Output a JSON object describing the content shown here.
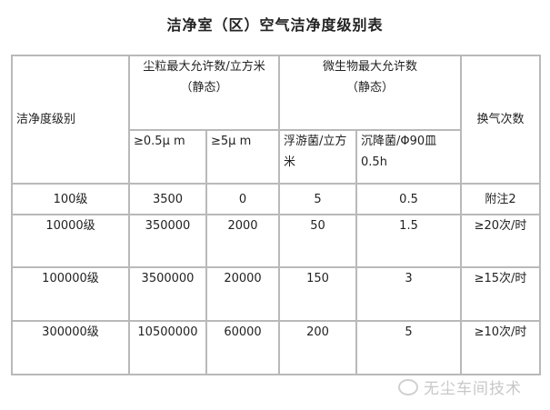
{
  "title": "洁净室（区）空气洁净度级别表",
  "headers": {
    "grade": "洁净度级别",
    "particle_group": [
      "尘粒最大允许数/立方米",
      "（静态）"
    ],
    "micro_group": [
      "微生物最大允许数",
      "（静态）"
    ],
    "air_changes": "换气次数",
    "sub": [
      "≥0.5μ m",
      "≥5μ m",
      "浮游菌/立方米",
      "沉降菌/Φ90皿 0.5h"
    ]
  },
  "rows": [
    [
      "100级",
      "3500",
      "0",
      "5",
      "0.5",
      "附注2"
    ],
    [
      "10000级",
      "350000",
      "2000",
      "50",
      "1.5",
      "≥20次/时"
    ],
    [
      "100000级",
      "3500000",
      "20000",
      "150",
      "3",
      "≥15次/时"
    ],
    [
      "300000级",
      "10500000",
      "60000",
      "200",
      "5",
      "≥10次/时"
    ]
  ],
  "watermark": "无尘车间技术",
  "colors": {
    "border": "#b9b9b9",
    "watermark": "#c8c8c8"
  }
}
